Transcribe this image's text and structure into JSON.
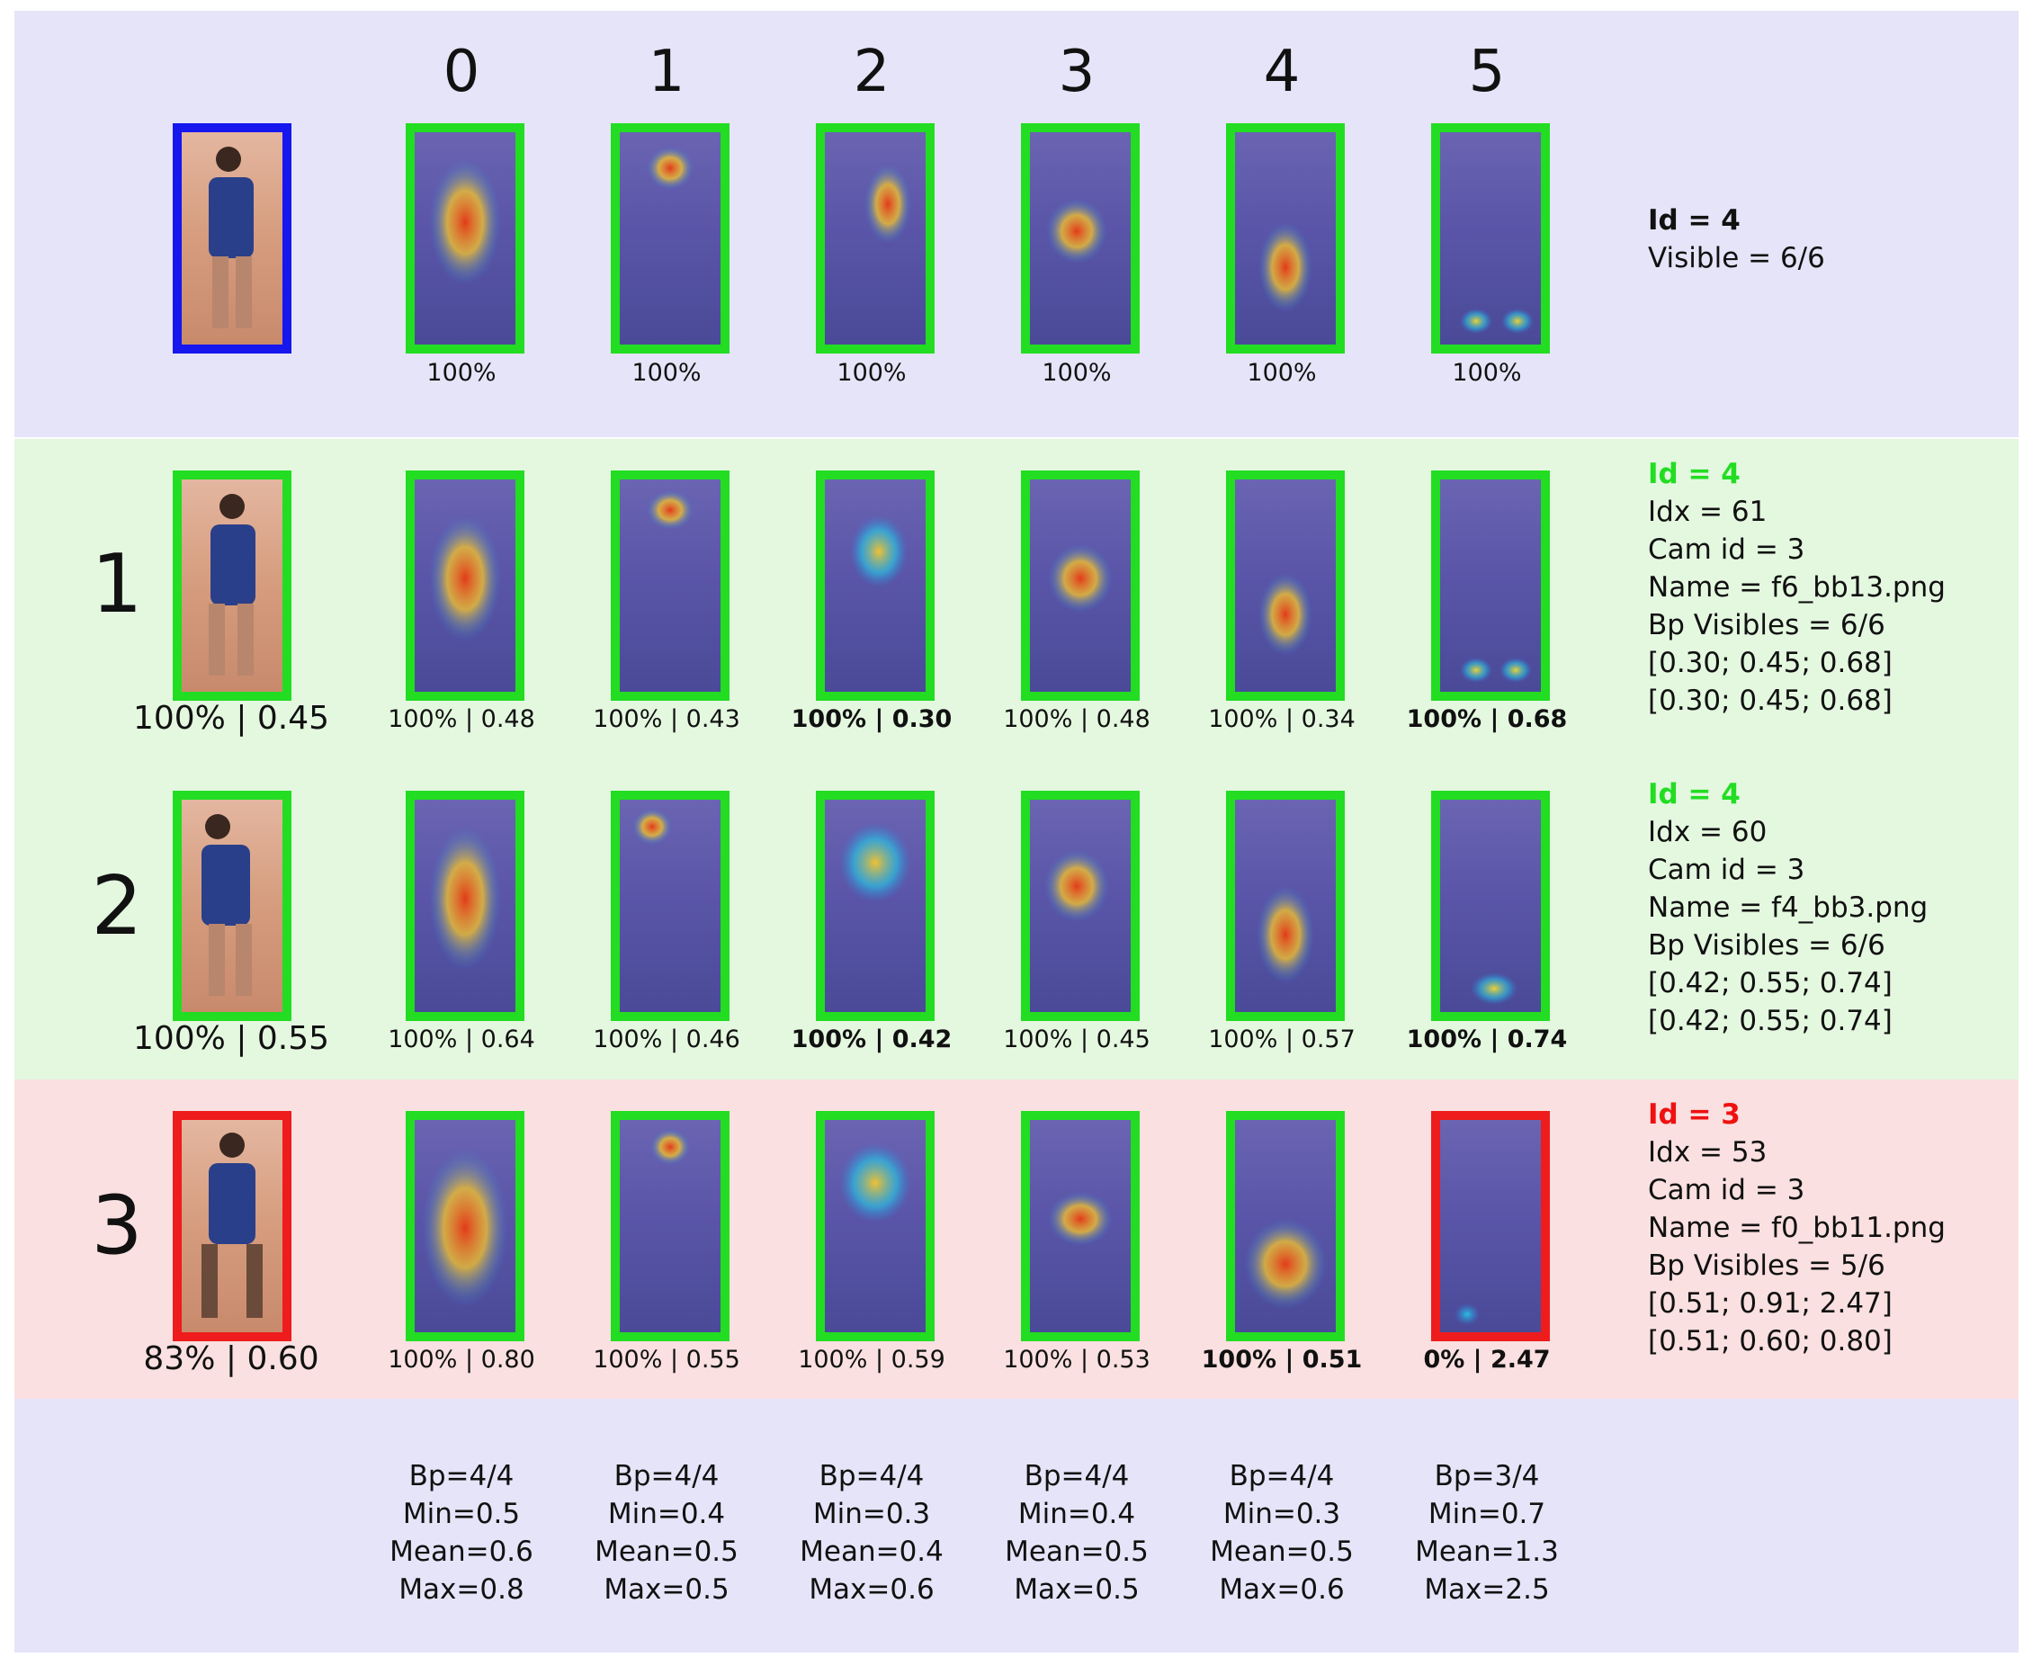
{
  "columns": [
    "0",
    "1",
    "2",
    "3",
    "4",
    "5"
  ],
  "query": {
    "captions": [
      "100%",
      "100%",
      "100%",
      "100%",
      "100%",
      "100%"
    ],
    "info": {
      "id": "Id = 4",
      "visible": "Visible = 6/6"
    }
  },
  "rows": [
    {
      "label": "1",
      "status": "correct",
      "main_caption": "100% | 0.45",
      "captions": [
        "100% | 0.48",
        "100% | 0.43",
        "100% | 0.30",
        "100% | 0.48",
        "100% | 0.34",
        "100% | 0.68"
      ],
      "bold": [
        false,
        false,
        true,
        false,
        false,
        true
      ],
      "info": {
        "id": "Id = 4",
        "idx": "Idx = 61",
        "cam": "Cam id = 3",
        "name": "Name = f6_bb13.png",
        "bp": "Bp Visibles = 6/6",
        "line1": "[0.30; 0.45; 0.68]",
        "line2": "[0.30; 0.45; 0.68]"
      }
    },
    {
      "label": "2",
      "status": "correct",
      "main_caption": "100% | 0.55",
      "captions": [
        "100% | 0.64",
        "100% | 0.46",
        "100% | 0.42",
        "100% | 0.45",
        "100% | 0.57",
        "100% | 0.74"
      ],
      "bold": [
        false,
        false,
        true,
        false,
        false,
        true
      ],
      "info": {
        "id": "Id = 4",
        "idx": "Idx = 60",
        "cam": "Cam id = 3",
        "name": "Name = f4_bb3.png",
        "bp": "Bp Visibles = 6/6",
        "line1": "[0.42; 0.55; 0.74]",
        "line2": "[0.42; 0.55; 0.74]"
      }
    },
    {
      "label": "3",
      "status": "wrong",
      "main_caption": "83% | 0.60",
      "captions": [
        "100% | 0.80",
        "100% | 0.55",
        "100% | 0.59",
        "100% | 0.53",
        "100% | 0.51",
        "0% | 2.47"
      ],
      "bold": [
        false,
        false,
        false,
        false,
        true,
        true
      ],
      "info": {
        "id": "Id = 3",
        "idx": "Idx = 53",
        "cam": "Cam id = 3",
        "name": "Name = f0_bb11.png",
        "bp": "Bp Visibles = 5/6",
        "line1": "[0.51; 0.91; 2.47]",
        "line2": "[0.51; 0.60; 0.80]"
      }
    }
  ],
  "stats": [
    {
      "bp": "Bp=4/4",
      "min": "Min=0.5",
      "mean": "Mean=0.6",
      "max": "Max=0.8"
    },
    {
      "bp": "Bp=4/4",
      "min": "Min=0.4",
      "mean": "Mean=0.5",
      "max": "Max=0.5"
    },
    {
      "bp": "Bp=4/4",
      "min": "Min=0.3",
      "mean": "Mean=0.4",
      "max": "Max=0.6"
    },
    {
      "bp": "Bp=4/4",
      "min": "Min=0.4",
      "mean": "Mean=0.5",
      "max": "Max=0.5"
    },
    {
      "bp": "Bp=4/4",
      "min": "Min=0.3",
      "mean": "Mean=0.5",
      "max": "Max=0.6"
    },
    {
      "bp": "Bp=3/4",
      "min": "Min=0.7",
      "mean": "Mean=1.3",
      "max": "Max=2.5"
    }
  ],
  "colors": {
    "match_border": "#22dd22",
    "mismatch_border": "#ee1c1c",
    "query_border": "#1616ee",
    "query_band": "#e6e4f8",
    "correct_band": "#e4f8e0",
    "wrong_band": "#fae0e0"
  }
}
